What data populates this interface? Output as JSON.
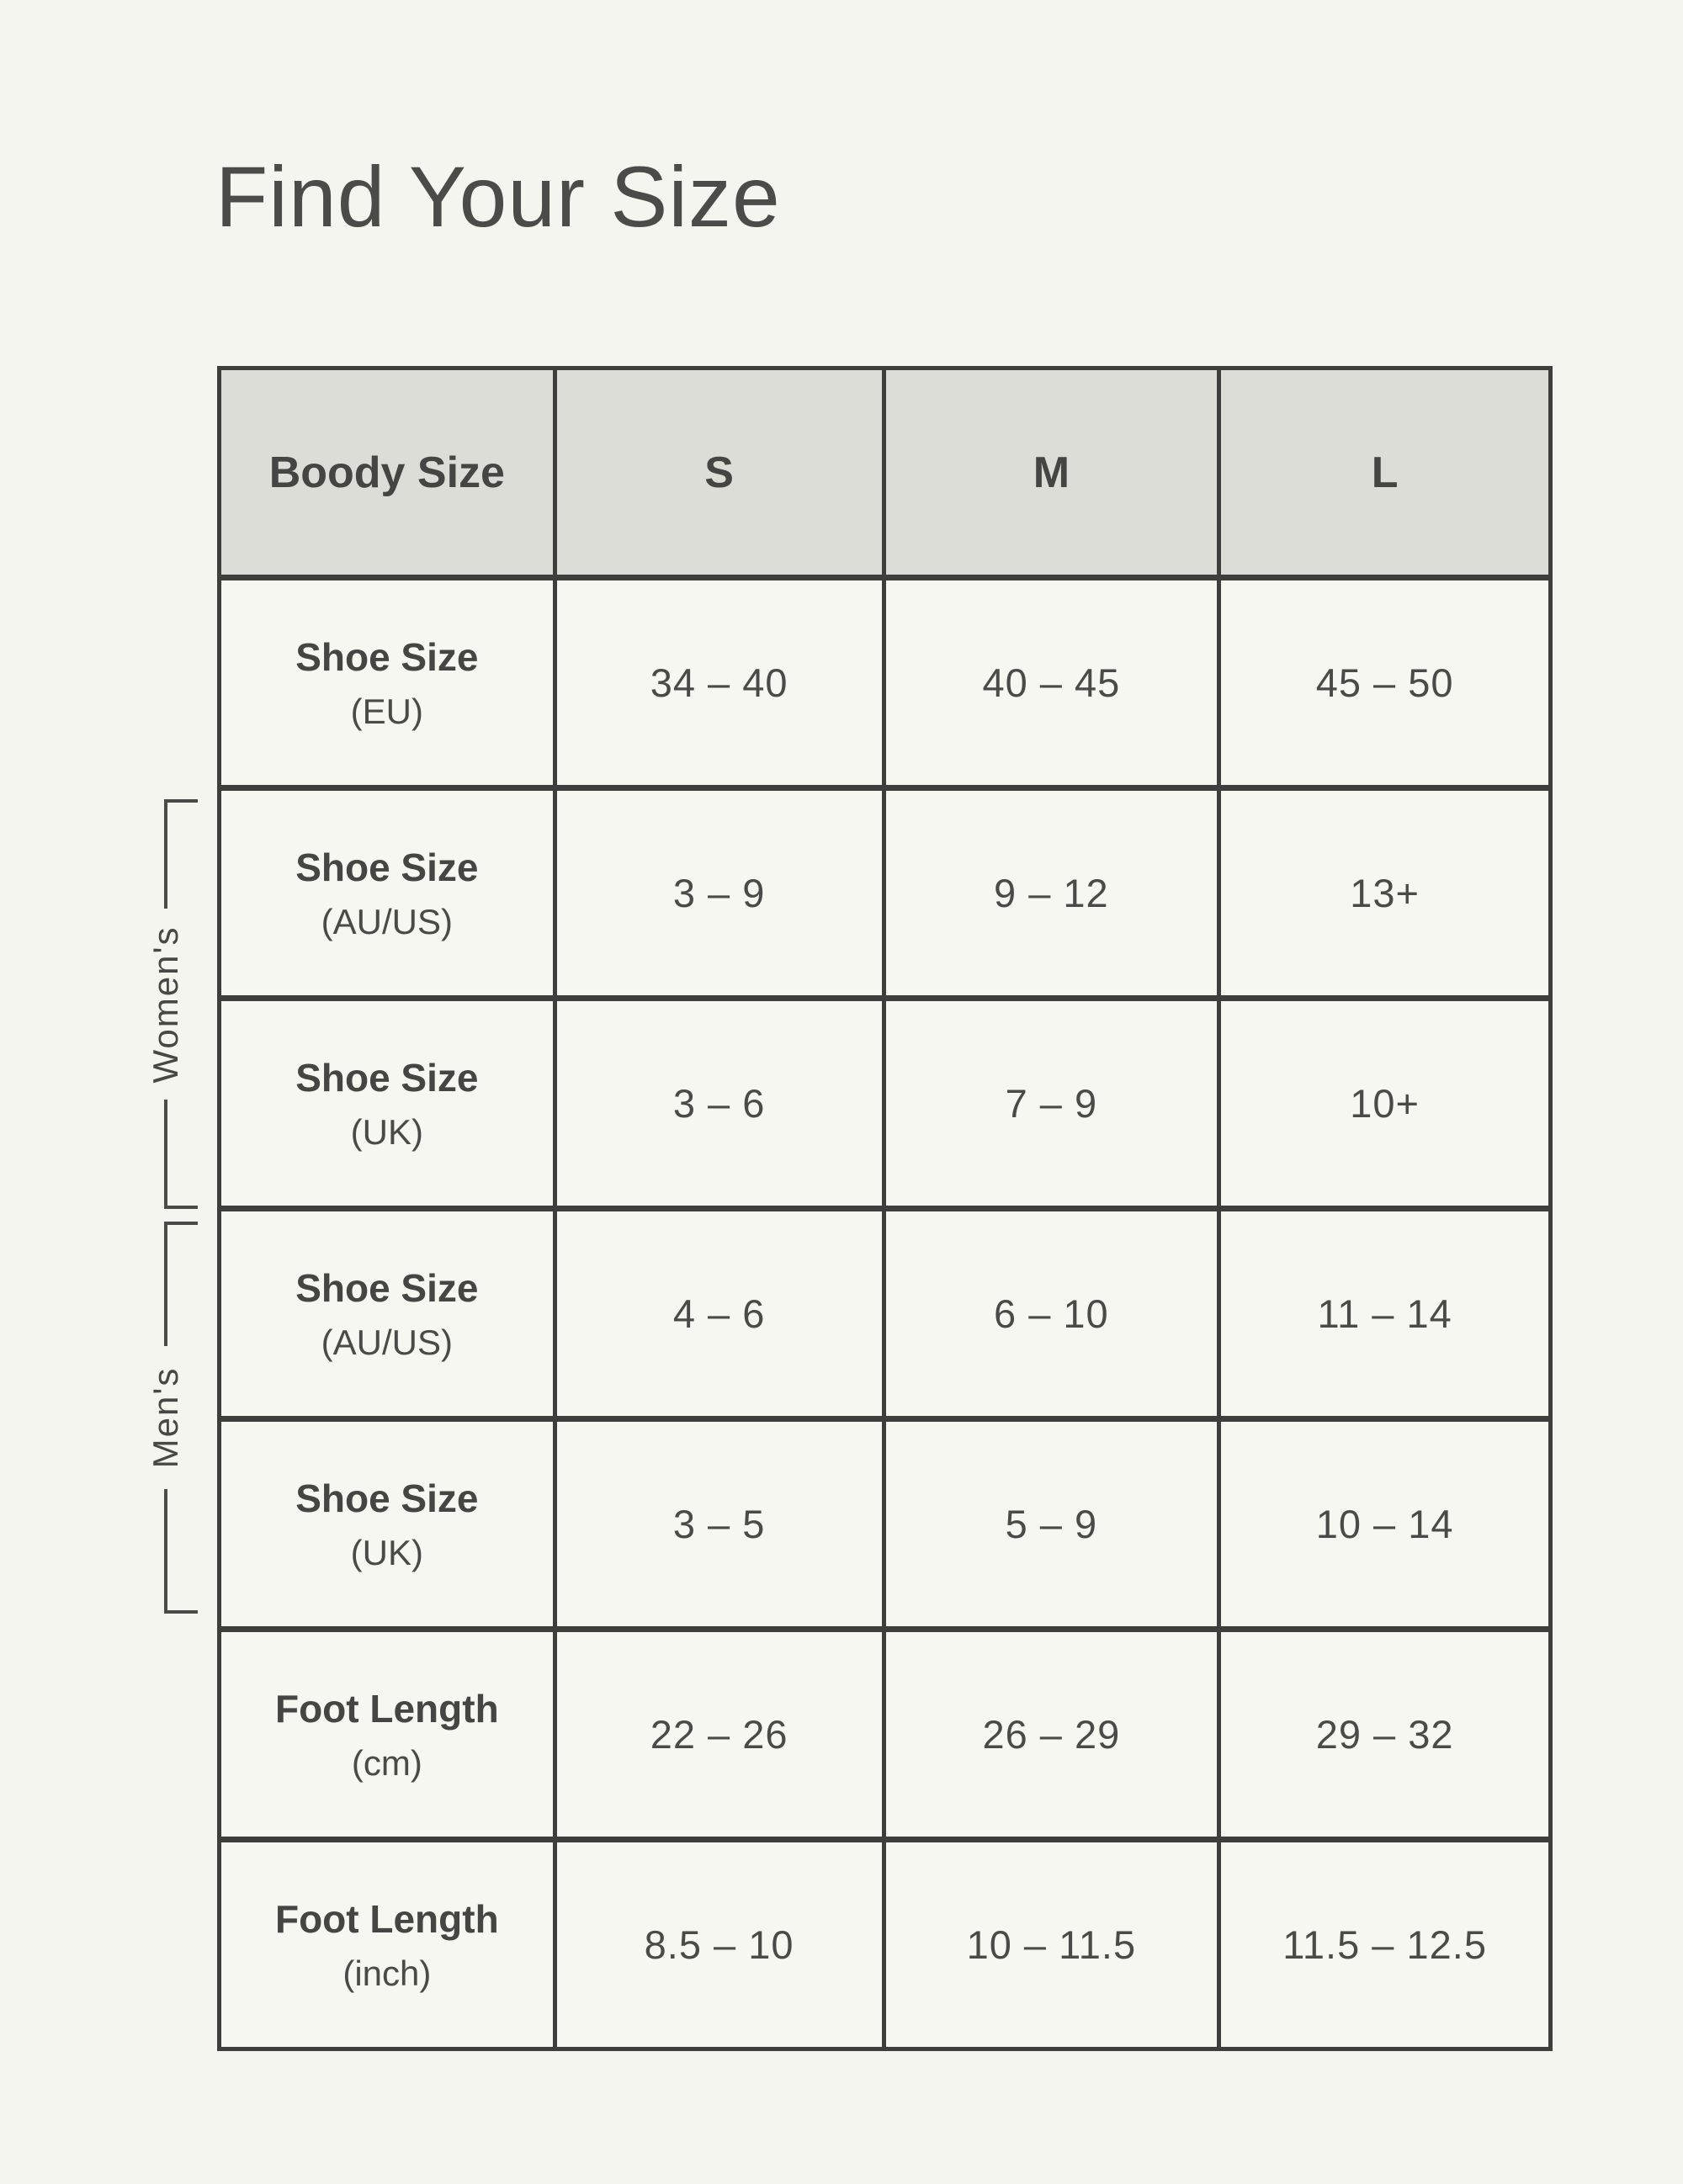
{
  "chart_data": {
    "type": "table",
    "title": "Find Your Size",
    "columns": [
      "Boody Size",
      "S",
      "M",
      "L"
    ],
    "rows": [
      {
        "group": "",
        "label": "Shoe Size",
        "unit": "(EU)",
        "values": [
          "34 – 40",
          "40 – 45",
          "45 – 50"
        ]
      },
      {
        "group": "Women's",
        "label": "Shoe Size",
        "unit": "(AU/US)",
        "values": [
          "3 – 9",
          "9 – 12",
          "13+"
        ]
      },
      {
        "group": "Women's",
        "label": "Shoe Size",
        "unit": "(UK)",
        "values": [
          "3 – 6",
          "7 – 9",
          "10+"
        ]
      },
      {
        "group": "Men's",
        "label": "Shoe Size",
        "unit": "(AU/US)",
        "values": [
          "4 – 6",
          "6 – 10",
          "11 – 14"
        ]
      },
      {
        "group": "Men's",
        "label": "Shoe Size",
        "unit": "(UK)",
        "values": [
          "3 – 5",
          "5 – 9",
          "10 – 14"
        ]
      },
      {
        "group": "",
        "label": "Foot Length",
        "unit": "(cm)",
        "values": [
          "22 – 26",
          "26 – 29",
          "29 – 32"
        ]
      },
      {
        "group": "",
        "label": "Foot Length",
        "unit": "(inch)",
        "values": [
          "8.5 – 10",
          "10 – 11.5",
          "11.5 – 12.5"
        ]
      }
    ],
    "groups": [
      {
        "label": "Women's",
        "row_indexes": [
          1,
          2
        ]
      },
      {
        "label": "Men's",
        "row_indexes": [
          3,
          4
        ]
      }
    ],
    "layout": {
      "legend": "none",
      "grid": "on",
      "group_brackets_position": "left"
    }
  },
  "colors": {
    "page_background": "#f5f5ef",
    "cell_background": "#f7f7f1",
    "header_background": "#dcddd6",
    "table_border": "#3e3e3c",
    "text": "#474745"
  }
}
